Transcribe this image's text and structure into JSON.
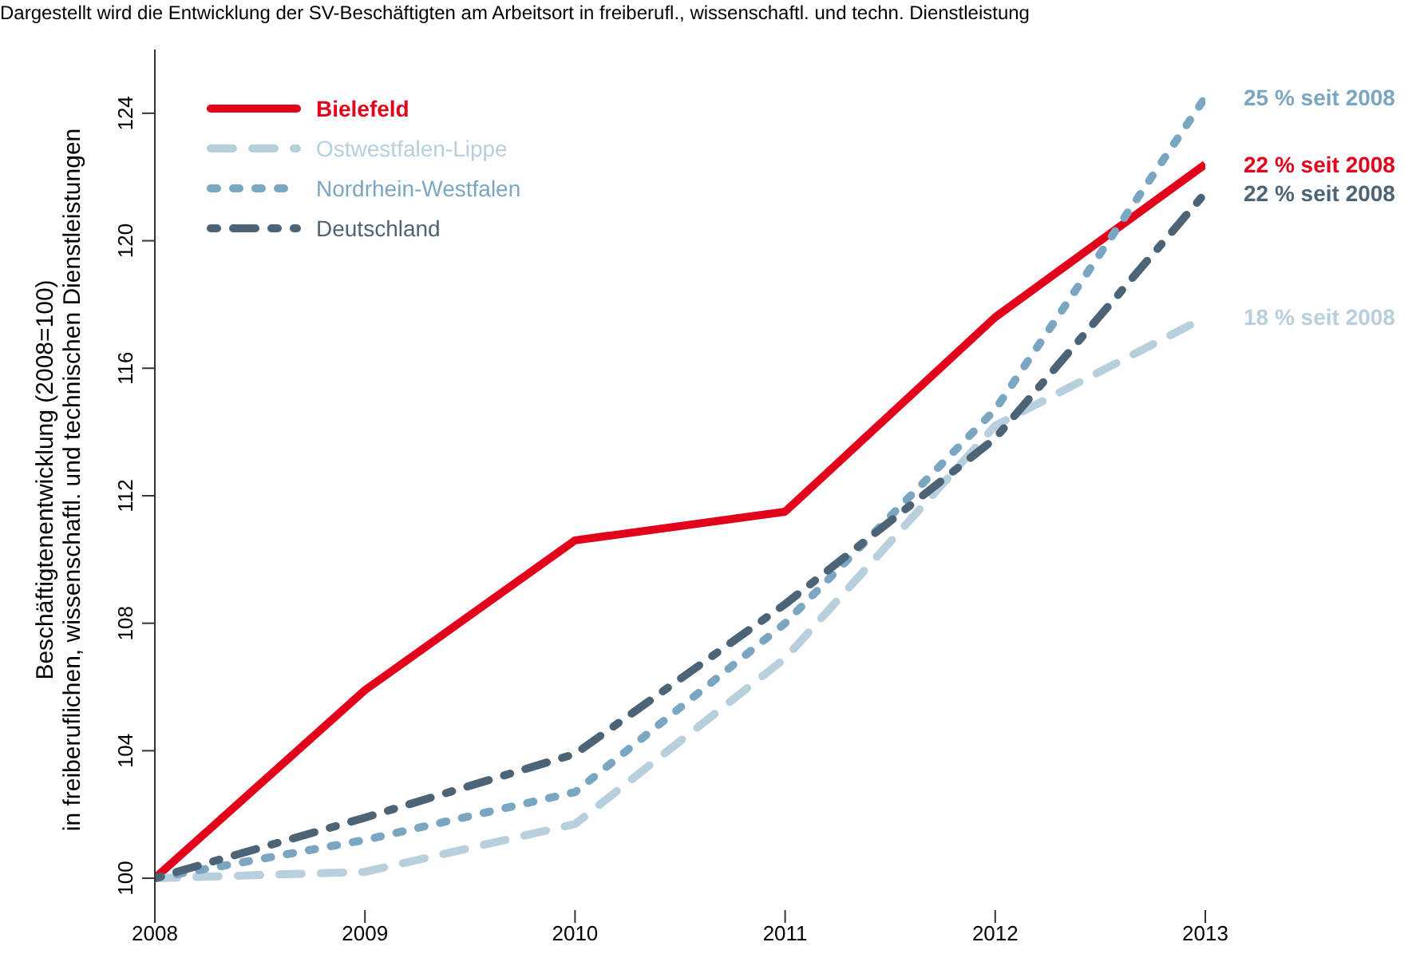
{
  "chart_data": {
    "type": "line",
    "subtitle": "Dargestellt wird die Entwicklung der SV-Beschäftigten am Arbeitsort in freiberufl., wissenschaftl. und techn. Dienstleistung",
    "ylabel": "Beschäftigtenentwicklung (2008=100)\nin freiberuflichen, wissenschaftl. und technischen Dienstleistungen",
    "x": [
      2008,
      2009,
      2010,
      2011,
      2012,
      2013
    ],
    "series": [
      {
        "name": "Bielefeld",
        "color": "#e2001a",
        "line_style": "solid",
        "values": [
          100,
          105.9,
          110.6,
          111.5,
          117.6,
          122.4
        ]
      },
      {
        "name": "Ostwestfalen-Lippe",
        "color": "#b8cfdd",
        "line_style": "dashed",
        "values": [
          100,
          100.2,
          101.7,
          106.9,
          114.2,
          117.6
        ]
      },
      {
        "name": "Nordrhein-Westfalen",
        "color": "#7aa6c2",
        "line_style": "dotted",
        "values": [
          100,
          101.2,
          102.7,
          108.0,
          114.7,
          124.5
        ]
      },
      {
        "name": "Deutschland",
        "color": "#4d6477",
        "line_style": "dashdot",
        "values": [
          100,
          101.9,
          103.9,
          108.6,
          113.8,
          121.5
        ]
      }
    ],
    "annotations": [
      "22 % seit 2008",
      "18 % seit 2008",
      "25 % seit 2008",
      "22 % seit 2008"
    ],
    "xlim": [
      2008,
      2013
    ],
    "xticks": [
      2008,
      2009,
      2010,
      2011,
      2012,
      2013
    ],
    "ylim": [
      99,
      126
    ],
    "yticks": [
      100,
      104,
      108,
      112,
      116,
      120,
      124
    ],
    "grid": false,
    "legend": "top left",
    "marker": "none"
  }
}
